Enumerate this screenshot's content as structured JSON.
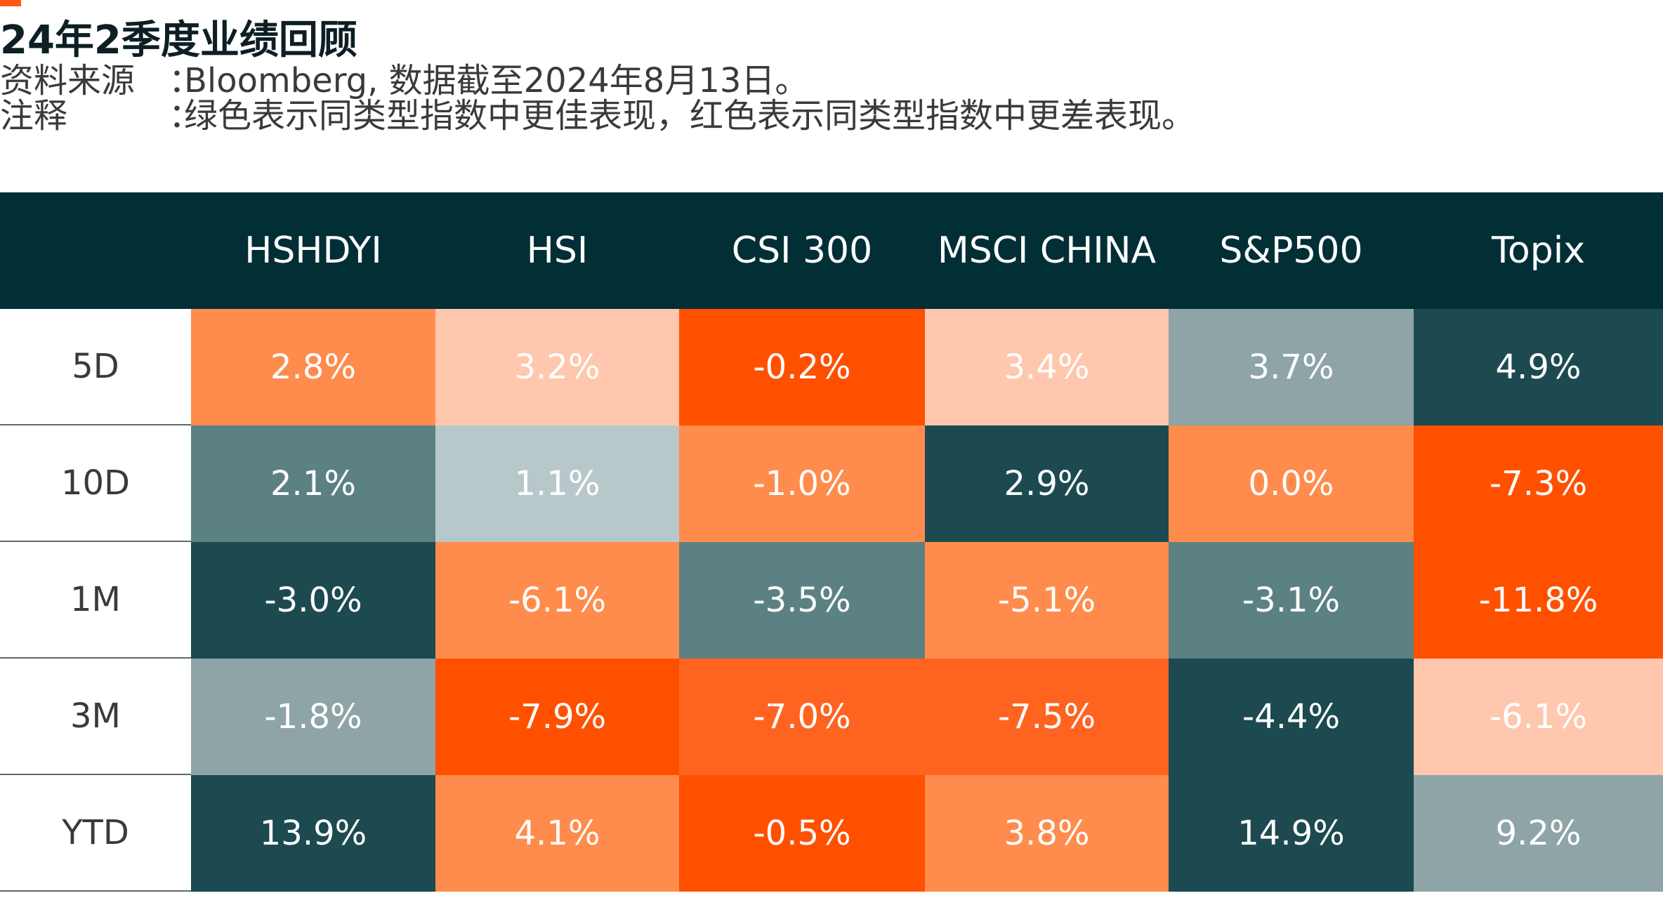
{
  "header": {
    "title": "24年2季度业绩回顾",
    "source_label": "资料来源",
    "source_value": "Bloomberg, 数据截至2024年8月13日。",
    "note_label": "注释",
    "note_value": "绿色表示同类型指数中更佳表现，红色表示同类型指数中更差表现。",
    "colon": "："
  },
  "colors": {
    "header_bg": "#022e36",
    "accent": "#ff5a14",
    "best_green": "#1c4a50",
    "worst_orange": "#ff5000"
  },
  "chart_data": {
    "type": "table",
    "columns": [
      "HSHDYI",
      "HSI",
      "CSI 300",
      "MSCI CHINA",
      "S&P500",
      "Topix"
    ],
    "rows": [
      {
        "label": "5D",
        "cells": [
          {
            "text": "2.8%",
            "value": 2.8,
            "bg": "#ff8c4c",
            "fg": "#ffffff"
          },
          {
            "text": "3.2%",
            "value": 3.2,
            "bg": "#ffc7ad",
            "fg": "#ffffff"
          },
          {
            "text": "-0.2%",
            "value": -0.2,
            "bg": "#ff5000",
            "fg": "#ffffff"
          },
          {
            "text": "3.4%",
            "value": 3.4,
            "bg": "#ffc7ad",
            "fg": "#ffffff"
          },
          {
            "text": "3.7%",
            "value": 3.7,
            "bg": "#8ea4a6",
            "fg": "#ffffff"
          },
          {
            "text": "4.9%",
            "value": 4.9,
            "bg": "#1c4a50",
            "fg": "#ffffff"
          }
        ]
      },
      {
        "label": "10D",
        "cells": [
          {
            "text": "2.1%",
            "value": 2.1,
            "bg": "#5c8183",
            "fg": "#ffffff"
          },
          {
            "text": "1.1%",
            "value": 1.1,
            "bg": "#b8c8ca",
            "fg": "#ffffff"
          },
          {
            "text": "-1.0%",
            "value": -1.0,
            "bg": "#ff8c4c",
            "fg": "#ffffff"
          },
          {
            "text": "2.9%",
            "value": 2.9,
            "bg": "#1c4a50",
            "fg": "#ffffff"
          },
          {
            "text": "0.0%",
            "value": 0.0,
            "bg": "#ff8c4c",
            "fg": "#ffffff"
          },
          {
            "text": "-7.3%",
            "value": -7.3,
            "bg": "#ff5000",
            "fg": "#ffffff"
          }
        ]
      },
      {
        "label": "1M",
        "cells": [
          {
            "text": "-3.0%",
            "value": -3.0,
            "bg": "#1c4a50",
            "fg": "#ffffff"
          },
          {
            "text": "-6.1%",
            "value": -6.1,
            "bg": "#ff8c4c",
            "fg": "#ffffff"
          },
          {
            "text": "-3.5%",
            "value": -3.5,
            "bg": "#5c8183",
            "fg": "#ffffff"
          },
          {
            "text": "-5.1%",
            "value": -5.1,
            "bg": "#ff8c4c",
            "fg": "#ffffff"
          },
          {
            "text": "-3.1%",
            "value": -3.1,
            "bg": "#5c8183",
            "fg": "#ffffff"
          },
          {
            "text": "-11.8%",
            "value": -11.8,
            "bg": "#ff5000",
            "fg": "#ffffff"
          }
        ]
      },
      {
        "label": "3M",
        "cells": [
          {
            "text": "-1.8%",
            "value": -1.8,
            "bg": "#8ea4a6",
            "fg": "#ffffff"
          },
          {
            "text": "-7.9%",
            "value": -7.9,
            "bg": "#ff5000",
            "fg": "#ffffff"
          },
          {
            "text": "-7.0%",
            "value": -7.0,
            "bg": "#ff6320",
            "fg": "#ffffff"
          },
          {
            "text": "-7.5%",
            "value": -7.5,
            "bg": "#ff6320",
            "fg": "#ffffff"
          },
          {
            "text": "-4.4%",
            "value": -4.4,
            "bg": "#1c4a50",
            "fg": "#ffffff"
          },
          {
            "text": "-6.1%",
            "value": -6.1,
            "bg": "#ffc7ad",
            "fg": "#ffffff"
          }
        ]
      },
      {
        "label": "YTD",
        "cells": [
          {
            "text": "13.9%",
            "value": 13.9,
            "bg": "#1c4a50",
            "fg": "#ffffff"
          },
          {
            "text": "4.1%",
            "value": 4.1,
            "bg": "#ff8c4c",
            "fg": "#ffffff"
          },
          {
            "text": "-0.5%",
            "value": -0.5,
            "bg": "#ff5000",
            "fg": "#ffffff"
          },
          {
            "text": "3.8%",
            "value": 3.8,
            "bg": "#ff8c4c",
            "fg": "#ffffff"
          },
          {
            "text": "14.9%",
            "value": 14.9,
            "bg": "#1c4a50",
            "fg": "#ffffff"
          },
          {
            "text": "9.2%",
            "value": 9.2,
            "bg": "#8ea4a6",
            "fg": "#ffffff"
          }
        ]
      }
    ]
  }
}
